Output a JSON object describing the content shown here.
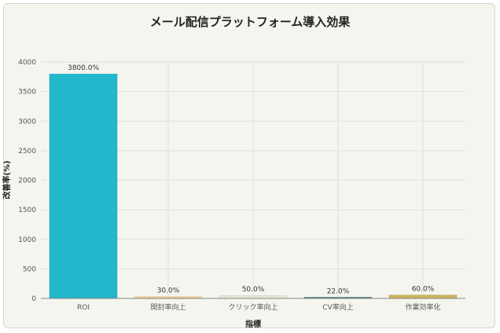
{
  "chart_data": {
    "type": "bar",
    "title": "メール配信プラットフォーム導入効果",
    "xlabel": "指標",
    "ylabel": "改善率(%)",
    "categories": [
      "ROI",
      "開封率向上",
      "クリック率向上",
      "CV率向上",
      "作業効率化"
    ],
    "values": [
      3800,
      30,
      50,
      22,
      60
    ],
    "data_labels": [
      "3800.0%",
      "30.0%",
      "50.0%",
      "22.0%",
      "60.0%"
    ],
    "colors": [
      "#21b8cc",
      "#f2c58a",
      "#e3e8d4",
      "#3d7a78",
      "#cbb558"
    ],
    "ylim": [
      0,
      4000
    ],
    "yticks": [
      0,
      500,
      1000,
      1500,
      2000,
      2500,
      3000,
      3500,
      4000
    ],
    "grid": true,
    "legend": "none"
  }
}
